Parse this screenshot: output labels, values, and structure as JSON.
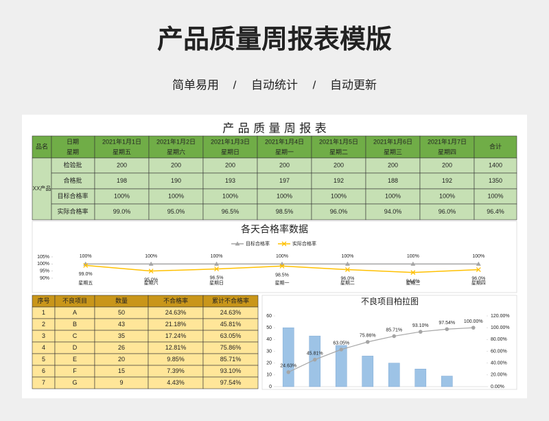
{
  "header": {
    "title": "产品质量周报表模版",
    "subtitle": [
      "简单易用",
      "自动统计",
      "自动更新"
    ],
    "separator": "/"
  },
  "weekly_table": {
    "title": "产 品 质 量 周 报 表",
    "header": {
      "product": "品名",
      "date": "日期",
      "weekday": "星期",
      "dates": [
        "2021年1月1日",
        "2021年1月2日",
        "2021年1月3日",
        "2021年1月4日",
        "2021年1月5日",
        "2021年1月6日",
        "2021年1月7日"
      ],
      "weekdays": [
        "星期五",
        "星期六",
        "星期日",
        "星期一",
        "星期二",
        "星期三",
        "星期四"
      ],
      "total": "合计"
    },
    "product": "XX产品",
    "rows": [
      {
        "label": "检验批",
        "values": [
          "200",
          "200",
          "200",
          "200",
          "200",
          "200",
          "200",
          "1400"
        ]
      },
      {
        "label": "合格批",
        "values": [
          "198",
          "190",
          "193",
          "197",
          "192",
          "188",
          "192",
          "1350"
        ]
      },
      {
        "label": "目标合格率",
        "values": [
          "100%",
          "100%",
          "100%",
          "100%",
          "100%",
          "100%",
          "100%",
          "100%"
        ]
      },
      {
        "label": "实际合格率",
        "values": [
          "99.0%",
          "95.0%",
          "96.5%",
          "98.5%",
          "96.0%",
          "94.0%",
          "96.0%",
          "96.4%"
        ]
      }
    ]
  },
  "defect_table": {
    "columns": [
      "序号",
      "不良项目",
      "数量",
      "不合格率",
      "累计不合格率"
    ],
    "rows": [
      [
        "1",
        "A",
        "50",
        "24.63%",
        "24.63%"
      ],
      [
        "2",
        "B",
        "43",
        "21.18%",
        "45.81%"
      ],
      [
        "3",
        "C",
        "35",
        "17.24%",
        "63.05%"
      ],
      [
        "4",
        "D",
        "26",
        "12.81%",
        "75.86%"
      ],
      [
        "5",
        "E",
        "20",
        "9.85%",
        "85.71%"
      ],
      [
        "6",
        "F",
        "15",
        "7.39%",
        "93.10%"
      ],
      [
        "7",
        "G",
        "9",
        "4.43%",
        "97.54%"
      ]
    ]
  },
  "chart_data": [
    {
      "type": "line",
      "title": "各天合格率数据",
      "categories": [
        "星期五",
        "星期六",
        "星期日",
        "星期一",
        "星期二",
        "星期三",
        "星期四"
      ],
      "series": [
        {
          "name": "目标合格率",
          "color": "#a5a5a5",
          "marker": "triangle",
          "values": [
            100,
            100,
            100,
            100,
            100,
            100,
            100
          ],
          "value_labels": [
            "100%",
            "100%",
            "100%",
            "100%",
            "100%",
            "100%",
            "100%"
          ]
        },
        {
          "name": "实际合格率",
          "color": "#ffc000",
          "marker": "x",
          "values": [
            99,
            95,
            96.5,
            98.5,
            96,
            94,
            96
          ],
          "value_labels": [
            "99.0%",
            "95.0%",
            "96.5%",
            "98.5%",
            "96.0%",
            "94.0%",
            "96.0%"
          ]
        }
      ],
      "ylim": [
        90,
        105
      ],
      "yticks": [
        {
          "value": 90,
          "label": "90%"
        },
        {
          "value": 95,
          "label": "95%"
        },
        {
          "value": 100,
          "label": "100%"
        },
        {
          "value": 105,
          "label": "105%"
        }
      ],
      "legend": "top",
      "grid": false
    },
    {
      "type": "pareto",
      "title": "不良项目柏拉图",
      "categories": [
        null,
        null,
        null,
        null,
        null,
        null,
        null,
        null
      ],
      "series": [
        {
          "name": "数量",
          "type": "bar",
          "color": "#9dc3e6",
          "values": [
            50,
            43,
            35,
            26,
            20,
            15,
            9,
            null
          ]
        },
        {
          "name": "累计不合格率",
          "type": "line",
          "axis": "y2",
          "color": "#a5a5a5",
          "values": [
            24.63,
            45.81,
            63.05,
            75.86,
            85.71,
            93.1,
            97.54,
            100
          ],
          "value_labels": [
            "24.63%",
            "45.81%",
            "63.05%",
            "75.86%",
            "85.71%",
            "93.10%",
            "97.54%",
            "100.00%"
          ]
        }
      ],
      "ylim": [
        0,
        60
      ],
      "yticks": [
        0,
        10,
        20,
        30,
        40,
        50,
        60
      ],
      "y2lim": [
        0,
        120
      ],
      "y2ticks": [
        {
          "value": 0,
          "label": "0.00%"
        },
        {
          "value": 20,
          "label": "20.00%"
        },
        {
          "value": 40,
          "label": "40.00%"
        },
        {
          "value": 60,
          "label": "60.00%"
        },
        {
          "value": 80,
          "label": "80.00%"
        },
        {
          "value": 100,
          "label": "100.00%"
        },
        {
          "value": 120,
          "label": "120.00%"
        }
      ],
      "legend": "none",
      "grid": false
    }
  ]
}
